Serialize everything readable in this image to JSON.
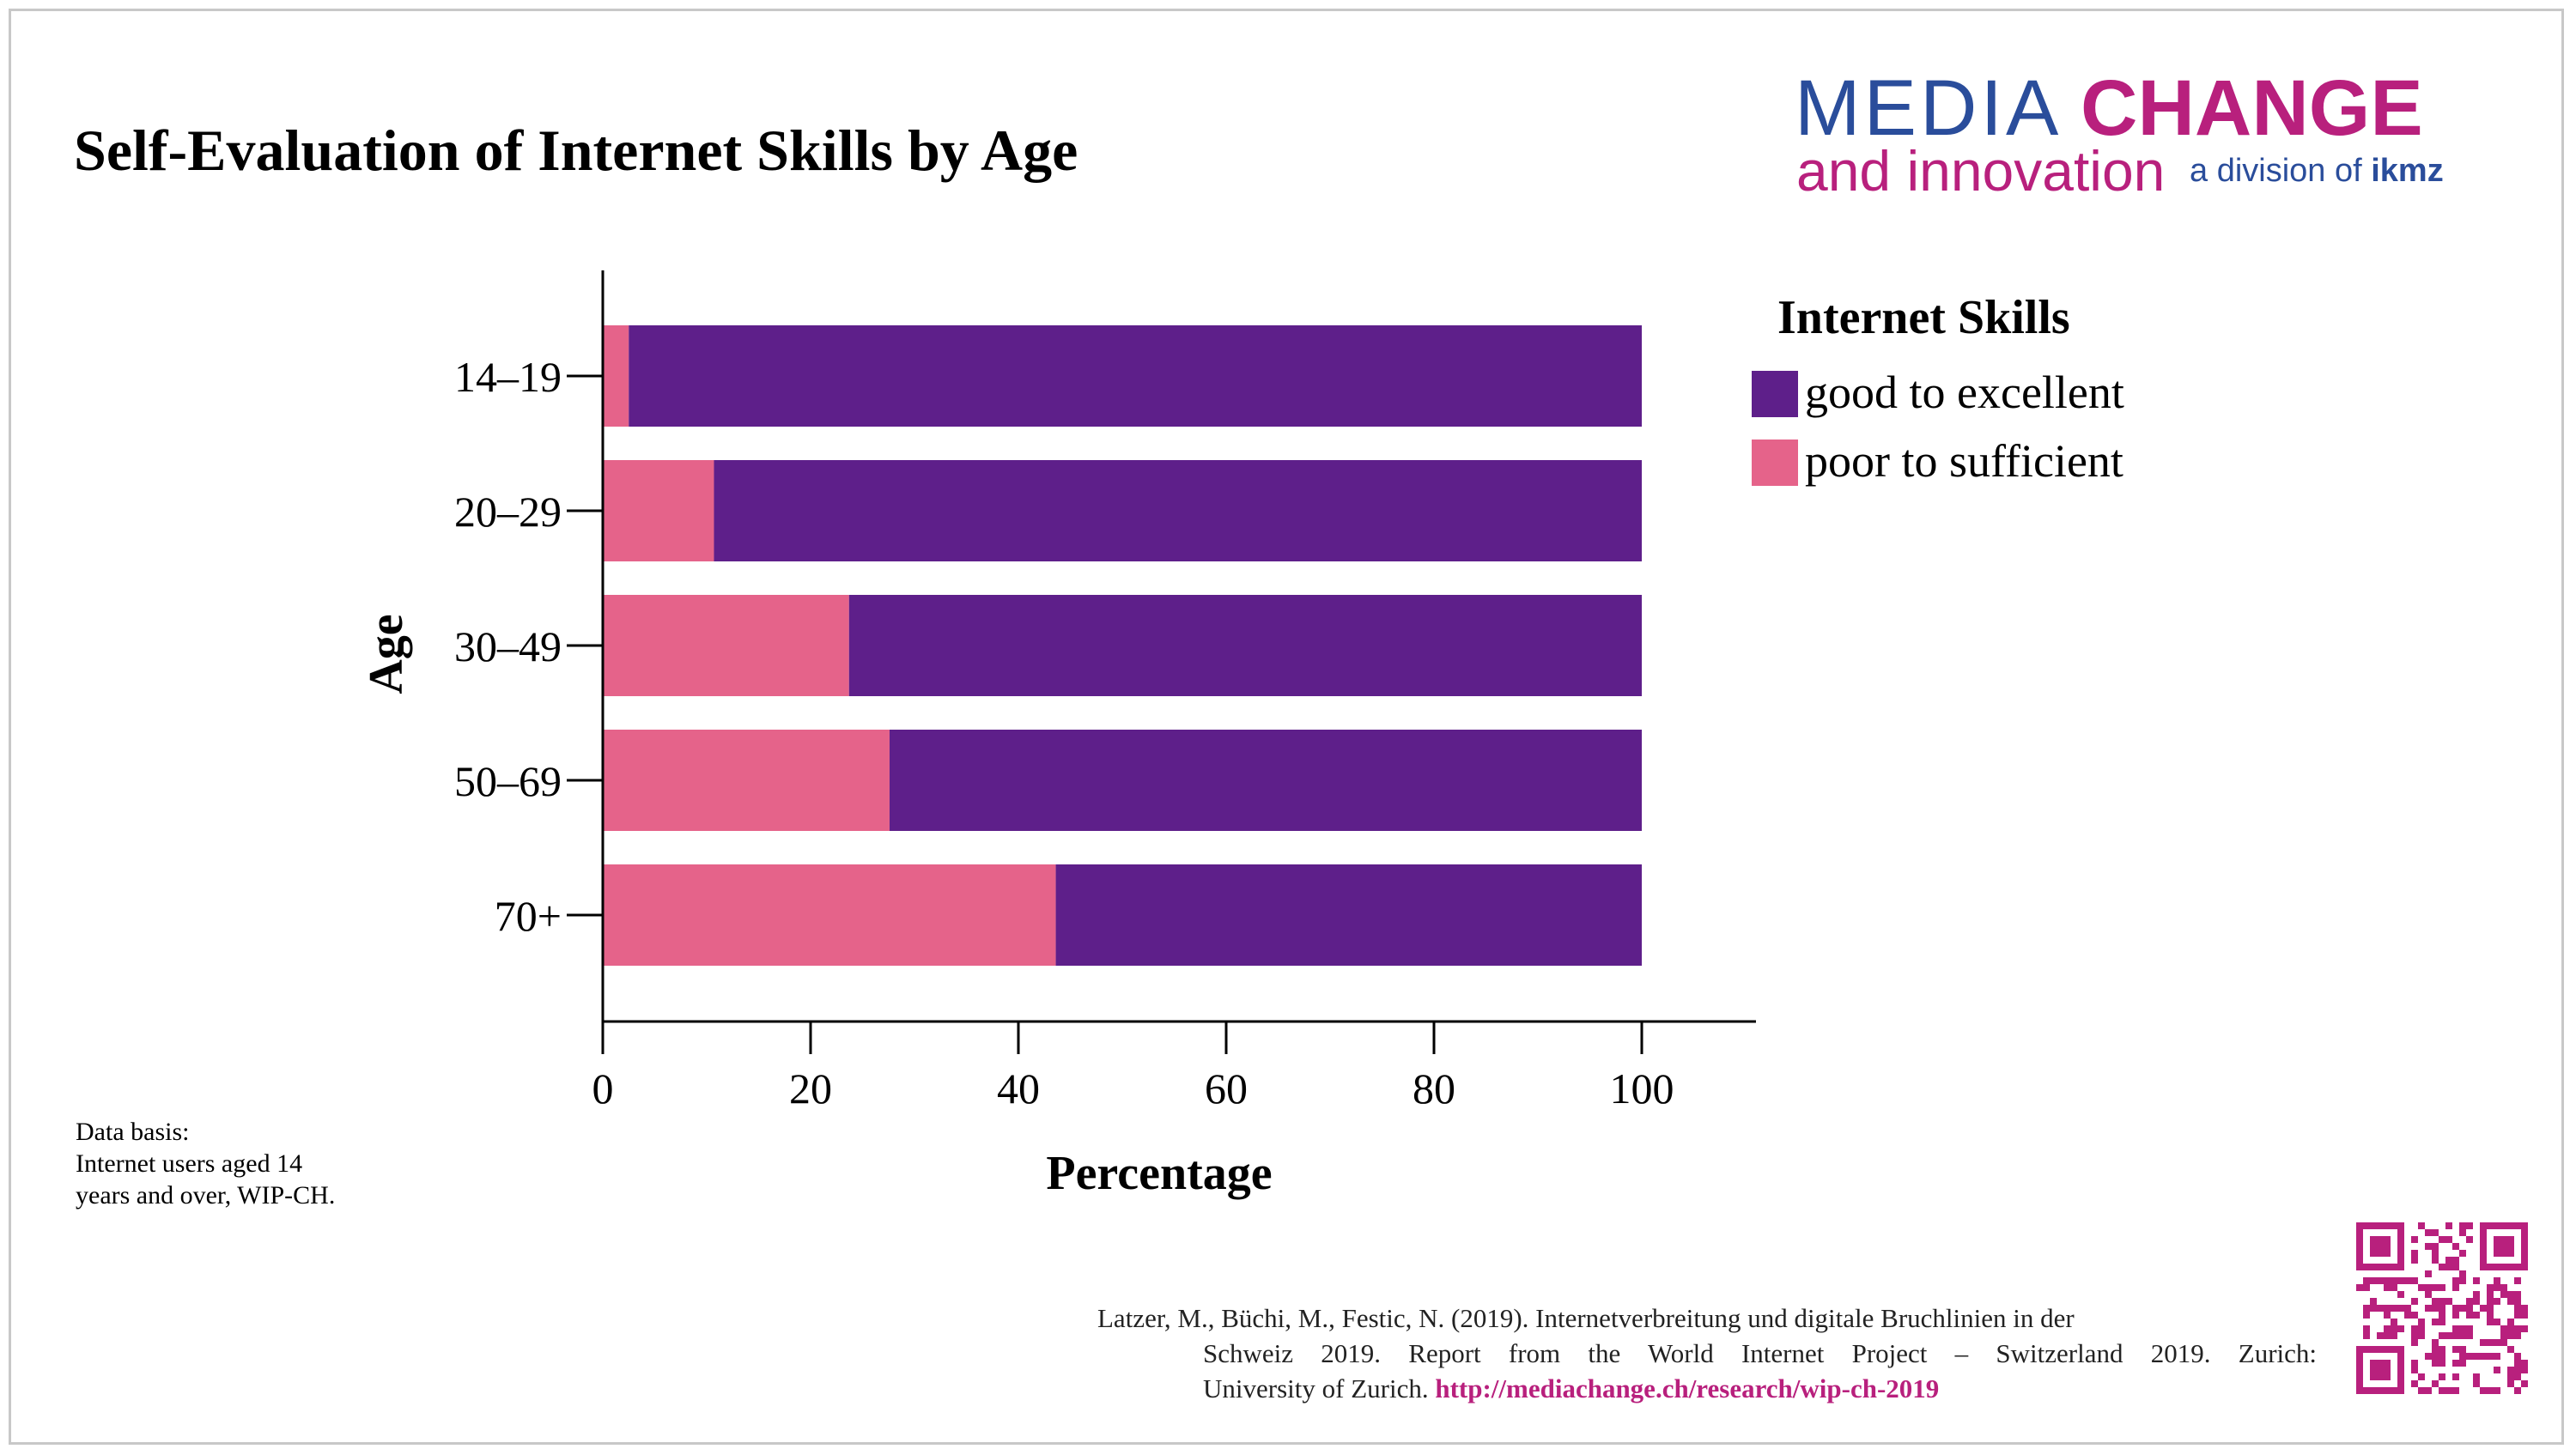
{
  "title": "Self-Evaluation of Internet Skills by Age",
  "logo": {
    "line1_a": "MEDIA",
    "line1_b": "CHANGE",
    "line2_a": "and innovation",
    "line2_b": "a division of",
    "line2_c": "ikmz"
  },
  "colors": {
    "good": "#5e1f8a",
    "poor": "#e5638a",
    "brand_blue": "#2a4d9b",
    "brand_magenta": "#b8207d"
  },
  "chart_data": {
    "type": "bar",
    "orientation": "horizontal",
    "stacked": true,
    "categories": [
      "14–19",
      "20–29",
      "30–49",
      "50–69",
      "70+"
    ],
    "series": [
      {
        "name": "poor to sufficient",
        "values": [
          2.5,
          10.7,
          23.7,
          27.6,
          43.6
        ]
      },
      {
        "name": "good to excellent",
        "values": [
          97.5,
          89.3,
          76.3,
          72.4,
          56.4
        ]
      }
    ],
    "xlabel": "Percentage",
    "ylabel": "Age",
    "xlim": [
      0,
      110
    ],
    "xticks": [
      0,
      20,
      40,
      60,
      80,
      100
    ],
    "xtick_labels": [
      "0",
      "20",
      "40",
      "60",
      "80",
      "100"
    ],
    "legend_title": "Internet Skills",
    "legend_position": "right",
    "grid": false
  },
  "legend": {
    "title": "Internet Skills",
    "items": [
      {
        "label": "good to excellent",
        "color": "#5e1f8a"
      },
      {
        "label": "poor to sufficient",
        "color": "#e5638a"
      }
    ]
  },
  "data_basis": {
    "line1": "Data basis:",
    "line2": "Internet users aged 14",
    "line3": "years and over, WIP-CH."
  },
  "citation": {
    "line1": "Latzer, M., Büchi, M., Festic, N. (2019). Internetverbreitung und digitale Bruchlinien in der",
    "line2": "Schweiz 2019. Report from the World Internet Project – Switzerland 2019. Zurich:",
    "line3": "University of Zurich.",
    "link": "http://mediachange.ch/research/wip-ch-2019"
  }
}
